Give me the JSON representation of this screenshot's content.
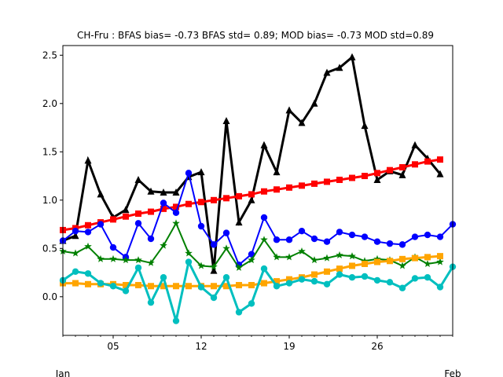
{
  "chart_data": {
    "type": "line",
    "title": "CH-Fru   : BFAS bias= -0.73 BFAS std= 0.89; MOD bias= -0.73 MOD std=0.89",
    "xlabel": "",
    "ylabel": "",
    "x_start_day": 1,
    "x_end_day": 32,
    "xlim": [
      1,
      32
    ],
    "ylim": [
      -0.4,
      2.6
    ],
    "yticks": [
      -0.0,
      0.5,
      1.0,
      1.5,
      2.0,
      2.5
    ],
    "ytick_labels": [
      "0.0",
      "0.5",
      "1.0",
      "1.5",
      "2.0",
      "2.5"
    ],
    "xticks": [
      5,
      12,
      19,
      26
    ],
    "xtick_labels": [
      "05",
      "12",
      "19",
      "26"
    ],
    "month_labels": [
      {
        "day": 1,
        "text": "Jan"
      },
      {
        "day": 32,
        "text": "Feb"
      }
    ],
    "grid": false,
    "legend": null,
    "x": [
      1,
      2,
      3,
      4,
      5,
      6,
      7,
      8,
      9,
      10,
      11,
      12,
      13,
      14,
      15,
      16,
      17,
      18,
      19,
      20,
      21,
      22,
      23,
      24,
      25,
      26,
      27,
      28,
      29,
      30,
      31,
      32
    ],
    "series": [
      {
        "color": "#000000",
        "marker": "triangle",
        "linewidth": 3,
        "values": [
          0.58,
          0.63,
          1.41,
          1.06,
          0.82,
          0.9,
          1.21,
          1.09,
          1.08,
          1.08,
          1.24,
          1.29,
          0.27,
          1.82,
          0.77,
          1.0,
          1.57,
          1.29,
          1.93,
          1.8,
          2.0,
          2.32,
          2.37,
          2.48,
          1.77,
          1.21,
          1.3,
          1.26,
          1.57,
          1.43,
          1.27,
          null
        ]
      },
      {
        "color": "#ff0000",
        "marker": "square",
        "linewidth": 3,
        "values": [
          0.69,
          0.71,
          0.74,
          0.77,
          0.8,
          0.83,
          0.86,
          0.88,
          0.91,
          0.93,
          0.96,
          0.98,
          1.0,
          1.02,
          1.04,
          1.06,
          1.09,
          1.11,
          1.13,
          1.15,
          1.17,
          1.19,
          1.21,
          1.23,
          1.25,
          1.28,
          1.31,
          1.34,
          1.37,
          1.4,
          1.42,
          null
        ]
      },
      {
        "color": "#0000ff",
        "marker": "circle",
        "linewidth": 2,
        "values": [
          0.58,
          0.68,
          0.67,
          0.75,
          0.51,
          0.41,
          0.76,
          0.6,
          0.97,
          0.87,
          1.28,
          0.73,
          0.54,
          0.66,
          0.33,
          0.44,
          0.82,
          0.59,
          0.59,
          0.68,
          0.6,
          0.57,
          0.67,
          0.64,
          0.62,
          0.57,
          0.55,
          0.54,
          0.62,
          0.64,
          0.62,
          0.75
        ]
      },
      {
        "color": "#008000",
        "marker": "star",
        "linewidth": 2,
        "values": [
          0.47,
          0.45,
          0.52,
          0.39,
          0.39,
          0.38,
          0.38,
          0.35,
          0.53,
          0.76,
          0.45,
          0.32,
          0.31,
          0.5,
          0.3,
          0.38,
          0.59,
          0.41,
          0.41,
          0.47,
          0.38,
          0.4,
          0.43,
          0.42,
          0.37,
          0.39,
          0.38,
          0.32,
          0.41,
          0.34,
          0.36,
          null
        ]
      },
      {
        "color": "#ffa500",
        "marker": "square",
        "linewidth": 3,
        "values": [
          0.14,
          0.14,
          0.13,
          0.13,
          0.13,
          0.12,
          0.12,
          0.11,
          0.11,
          0.11,
          0.11,
          0.11,
          0.11,
          0.11,
          0.12,
          0.12,
          0.14,
          0.16,
          0.18,
          0.2,
          0.23,
          0.26,
          0.29,
          0.32,
          0.34,
          0.36,
          0.37,
          0.39,
          0.4,
          0.41,
          0.42,
          null
        ]
      },
      {
        "color": "#00bfbf",
        "marker": "circle",
        "linewidth": 3,
        "values": [
          0.17,
          0.26,
          0.24,
          0.14,
          0.11,
          0.06,
          0.3,
          -0.06,
          0.2,
          -0.25,
          0.36,
          0.1,
          -0.01,
          0.2,
          -0.16,
          -0.07,
          0.29,
          0.11,
          0.14,
          0.18,
          0.16,
          0.13,
          0.23,
          0.2,
          0.21,
          0.17,
          0.15,
          0.09,
          0.19,
          0.2,
          0.1,
          0.31
        ]
      }
    ]
  }
}
